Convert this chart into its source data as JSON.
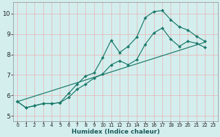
{
  "xlabel": "Humidex (Indice chaleur)",
  "xlim": [
    -0.5,
    23.5
  ],
  "ylim": [
    4.75,
    10.55
  ],
  "xticks": [
    0,
    1,
    2,
    3,
    4,
    5,
    6,
    7,
    8,
    9,
    10,
    11,
    12,
    13,
    14,
    15,
    16,
    17,
    18,
    19,
    20,
    21,
    22,
    23
  ],
  "yticks": [
    5,
    6,
    7,
    8,
    9,
    10
  ],
  "bg_color": "#d4eeee",
  "line_color": "#1a7a6a",
  "grid_color": "#e8b0b0",
  "line1_y": [
    5.7,
    5.4,
    5.5,
    5.6,
    5.6,
    5.65,
    6.1,
    6.55,
    6.95,
    7.1,
    7.85,
    8.7,
    8.1,
    8.4,
    8.85,
    9.8,
    10.1,
    10.15,
    9.7,
    9.35,
    9.2,
    8.9,
    8.65,
    null
  ],
  "line2_y": [
    5.7,
    5.4,
    5.5,
    5.6,
    5.6,
    5.65,
    5.9,
    6.3,
    6.55,
    6.85,
    7.05,
    7.5,
    7.7,
    7.5,
    7.75,
    8.5,
    9.05,
    9.3,
    8.75,
    8.4,
    8.65,
    8.55,
    8.35,
    null
  ],
  "line3_x": [
    0,
    22
  ],
  "line3_y": [
    5.7,
    8.6
  ]
}
